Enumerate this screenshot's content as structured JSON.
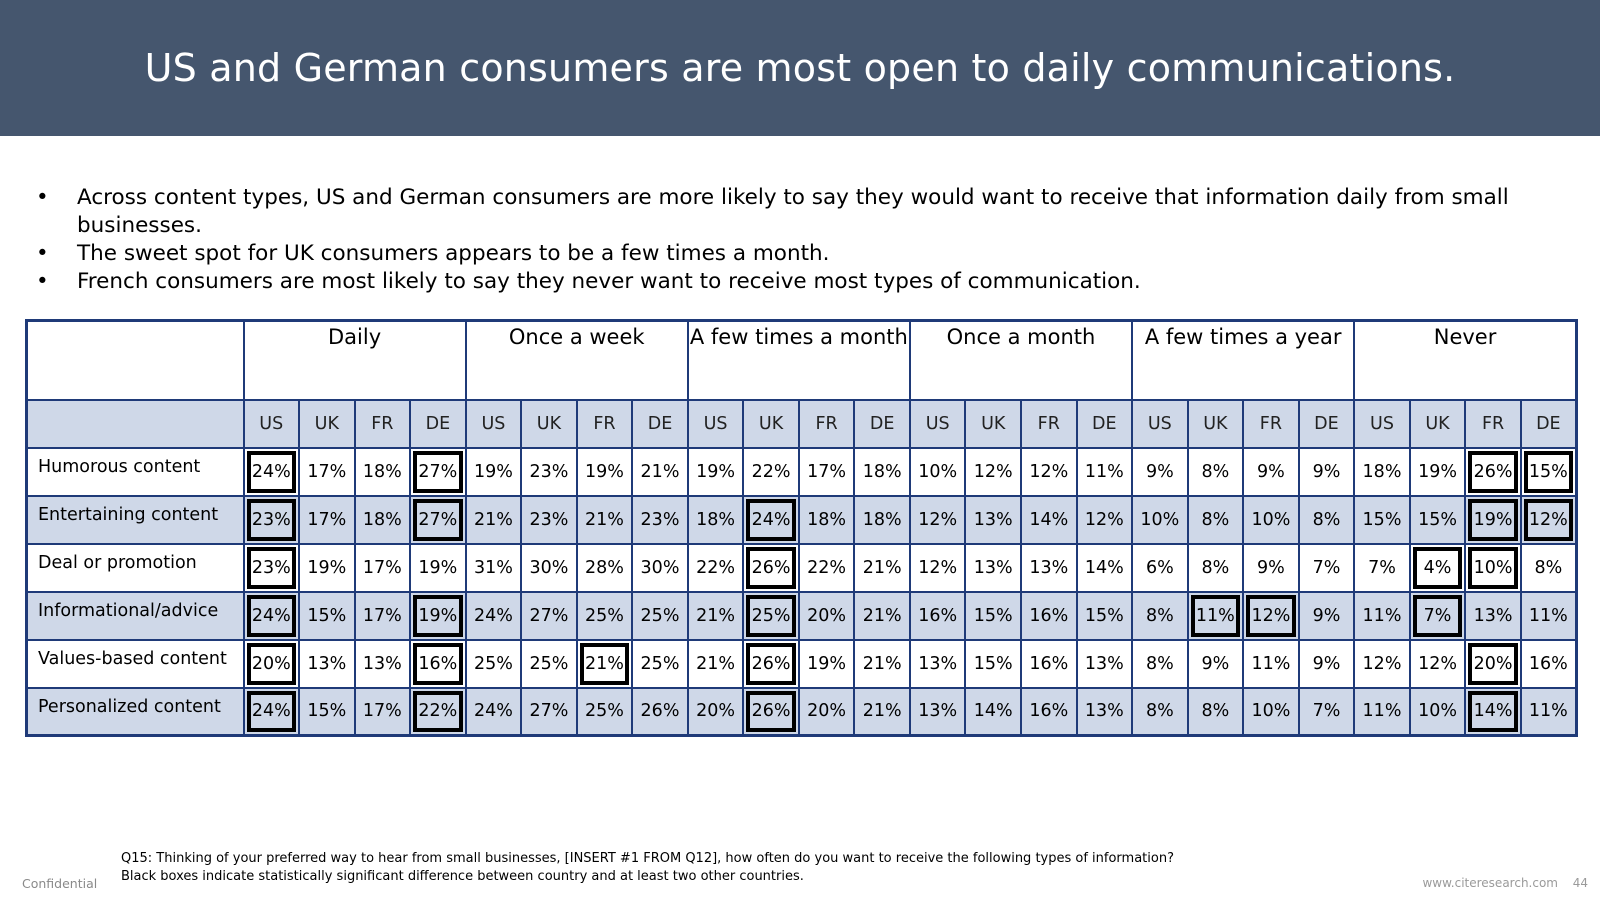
{
  "title": "US and German consumers are most open to daily communications.",
  "bullets": [
    "Across content types, US and German consumers are more likely to say they would want to receive that information daily from small businesses.",
    "The sweet spot for UK consumers appears to be a few times a month.",
    "French consumers are most likely to say they never want to receive most types of communication."
  ],
  "bullet_symbol": "•",
  "table": {
    "groups": [
      "Daily",
      "Once a week",
      "A few times a month",
      "Once a month",
      "A few times a year",
      "Never"
    ],
    "countries": [
      "US",
      "UK",
      "FR",
      "DE"
    ],
    "rows": [
      {
        "label": "Humorous content",
        "values": [
          "24%",
          "17%",
          "18%",
          "27%",
          "19%",
          "23%",
          "19%",
          "21%",
          "19%",
          "22%",
          "17%",
          "18%",
          "10%",
          "12%",
          "12%",
          "11%",
          "9%",
          "8%",
          "9%",
          "9%",
          "18%",
          "19%",
          "26%",
          "15%"
        ],
        "significant": [
          0,
          3,
          22,
          23
        ]
      },
      {
        "label": "Entertaining content",
        "values": [
          "23%",
          "17%",
          "18%",
          "27%",
          "21%",
          "23%",
          "21%",
          "23%",
          "18%",
          "24%",
          "18%",
          "18%",
          "12%",
          "13%",
          "14%",
          "12%",
          "10%",
          "8%",
          "10%",
          "8%",
          "15%",
          "15%",
          "19%",
          "12%"
        ],
        "significant": [
          0,
          3,
          9,
          22,
          23
        ]
      },
      {
        "label": "Deal or promotion",
        "values": [
          "23%",
          "19%",
          "17%",
          "19%",
          "31%",
          "30%",
          "28%",
          "30%",
          "22%",
          "26%",
          "22%",
          "21%",
          "12%",
          "13%",
          "13%",
          "14%",
          "6%",
          "8%",
          "9%",
          "7%",
          "7%",
          "4%",
          "10%",
          "8%"
        ],
        "significant": [
          0,
          9,
          21,
          22
        ]
      },
      {
        "label": "Informational/advice",
        "values": [
          "24%",
          "15%",
          "17%",
          "19%",
          "24%",
          "27%",
          "25%",
          "25%",
          "21%",
          "25%",
          "20%",
          "21%",
          "16%",
          "15%",
          "16%",
          "15%",
          "8%",
          "11%",
          "12%",
          "9%",
          "11%",
          "7%",
          "13%",
          "11%"
        ],
        "significant": [
          0,
          3,
          9,
          17,
          18,
          21
        ]
      },
      {
        "label": "Values-based content",
        "values": [
          "20%",
          "13%",
          "13%",
          "16%",
          "25%",
          "25%",
          "21%",
          "25%",
          "21%",
          "26%",
          "19%",
          "21%",
          "13%",
          "15%",
          "16%",
          "13%",
          "8%",
          "9%",
          "11%",
          "9%",
          "12%",
          "12%",
          "20%",
          "16%"
        ],
        "significant": [
          0,
          3,
          6,
          9,
          22
        ]
      },
      {
        "label": "Personalized content",
        "values": [
          "24%",
          "15%",
          "17%",
          "22%",
          "24%",
          "27%",
          "25%",
          "26%",
          "20%",
          "26%",
          "20%",
          "21%",
          "13%",
          "14%",
          "16%",
          "13%",
          "8%",
          "8%",
          "10%",
          "7%",
          "11%",
          "10%",
          "14%",
          "11%"
        ],
        "significant": [
          0,
          3,
          9,
          22
        ]
      }
    ]
  },
  "footnote": {
    "question": "Q15: Thinking of your preferred way to hear from small businesses, [INSERT #1 FROM Q12], how often do you want to receive the following types of information?",
    "legend": "Black boxes indicate statistically significant difference between country and at least two other countries."
  },
  "footer": {
    "confidential": "Confidential",
    "website": "www.citeresearch.com",
    "page_number": "44"
  },
  "colors": {
    "banner": "#45566e",
    "table_border": "#1f3a78",
    "shade": "#cfd8e8"
  }
}
